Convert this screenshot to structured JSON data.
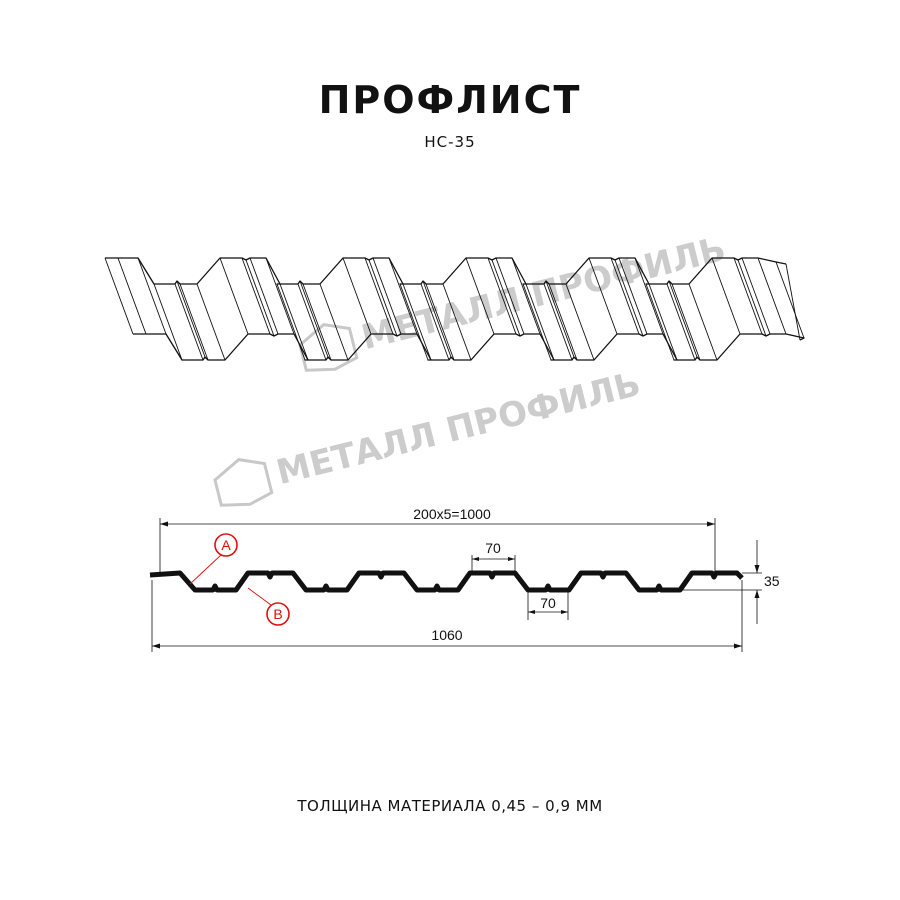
{
  "header": {
    "title": "ПРОФЛИСТ",
    "model": "НС-35"
  },
  "watermark": {
    "text": "МЕТАЛЛ ПРОФИЛЬ"
  },
  "drawing": {
    "dim_pitch": "200x5=1000",
    "dim_total": "1060",
    "dim_height": "35",
    "dim_crest": "70",
    "dim_trough": "70",
    "marker_a": "A",
    "marker_b": "B",
    "marker_color": "#e01010"
  },
  "footer": {
    "thickness": "ТОЛЩИНА МАТЕРИАЛА 0,45 – 0,9 ММ"
  }
}
